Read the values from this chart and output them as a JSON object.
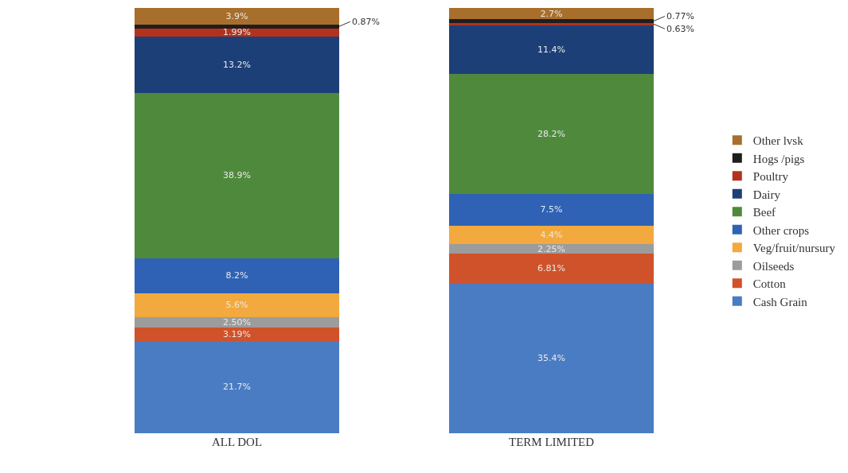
{
  "chart_data": {
    "type": "bar",
    "stacked": true,
    "categories": [
      "ALL DOL",
      "TERM LIMITED"
    ],
    "legend": "right",
    "series": [
      {
        "name": "Cash Grain",
        "color": "#4a7cc4",
        "values": [
          21.7,
          35.4
        ],
        "value_labels": [
          "21.7%",
          "35.4%"
        ]
      },
      {
        "name": "Cotton",
        "color": "#d0522a",
        "values": [
          3.19,
          6.81
        ],
        "value_labels": [
          "3.19%",
          "6.81%"
        ]
      },
      {
        "name": "Oilseeds",
        "color": "#9c9c9c",
        "values": [
          2.5,
          2.25
        ],
        "value_labels": [
          "2.50%",
          "2.25%"
        ]
      },
      {
        "name": "Veg/fruit/nursury",
        "color": "#f2a93e",
        "values": [
          5.6,
          4.4
        ],
        "value_labels": [
          "5.6%",
          "4.4%"
        ]
      },
      {
        "name": "Other crops",
        "color": "#2f62b4",
        "values": [
          8.2,
          7.5
        ],
        "value_labels": [
          "8.2%",
          "7.5%"
        ]
      },
      {
        "name": "Beef",
        "color": "#4f8a3c",
        "values": [
          38.9,
          28.2
        ],
        "value_labels": [
          "38.9%",
          "28.2%"
        ]
      },
      {
        "name": "Dairy",
        "color": "#1d3f78",
        "values": [
          13.2,
          11.4
        ],
        "value_labels": [
          "13.2%",
          "11.4%"
        ]
      },
      {
        "name": "Poultry",
        "color": "#b4321c",
        "values": [
          1.99,
          0.63
        ],
        "value_labels": [
          "1.99%",
          "0.63%"
        ]
      },
      {
        "name": "Hogs /pigs",
        "color": "#1e1e1e",
        "values": [
          0.87,
          0.77
        ],
        "value_labels": [
          "0.87%",
          "0.77%"
        ]
      },
      {
        "name": "Other lvsk",
        "color": "#a86e2c",
        "values": [
          3.9,
          2.7
        ],
        "value_labels": [
          "3.9%",
          "2.7%"
        ]
      }
    ]
  }
}
